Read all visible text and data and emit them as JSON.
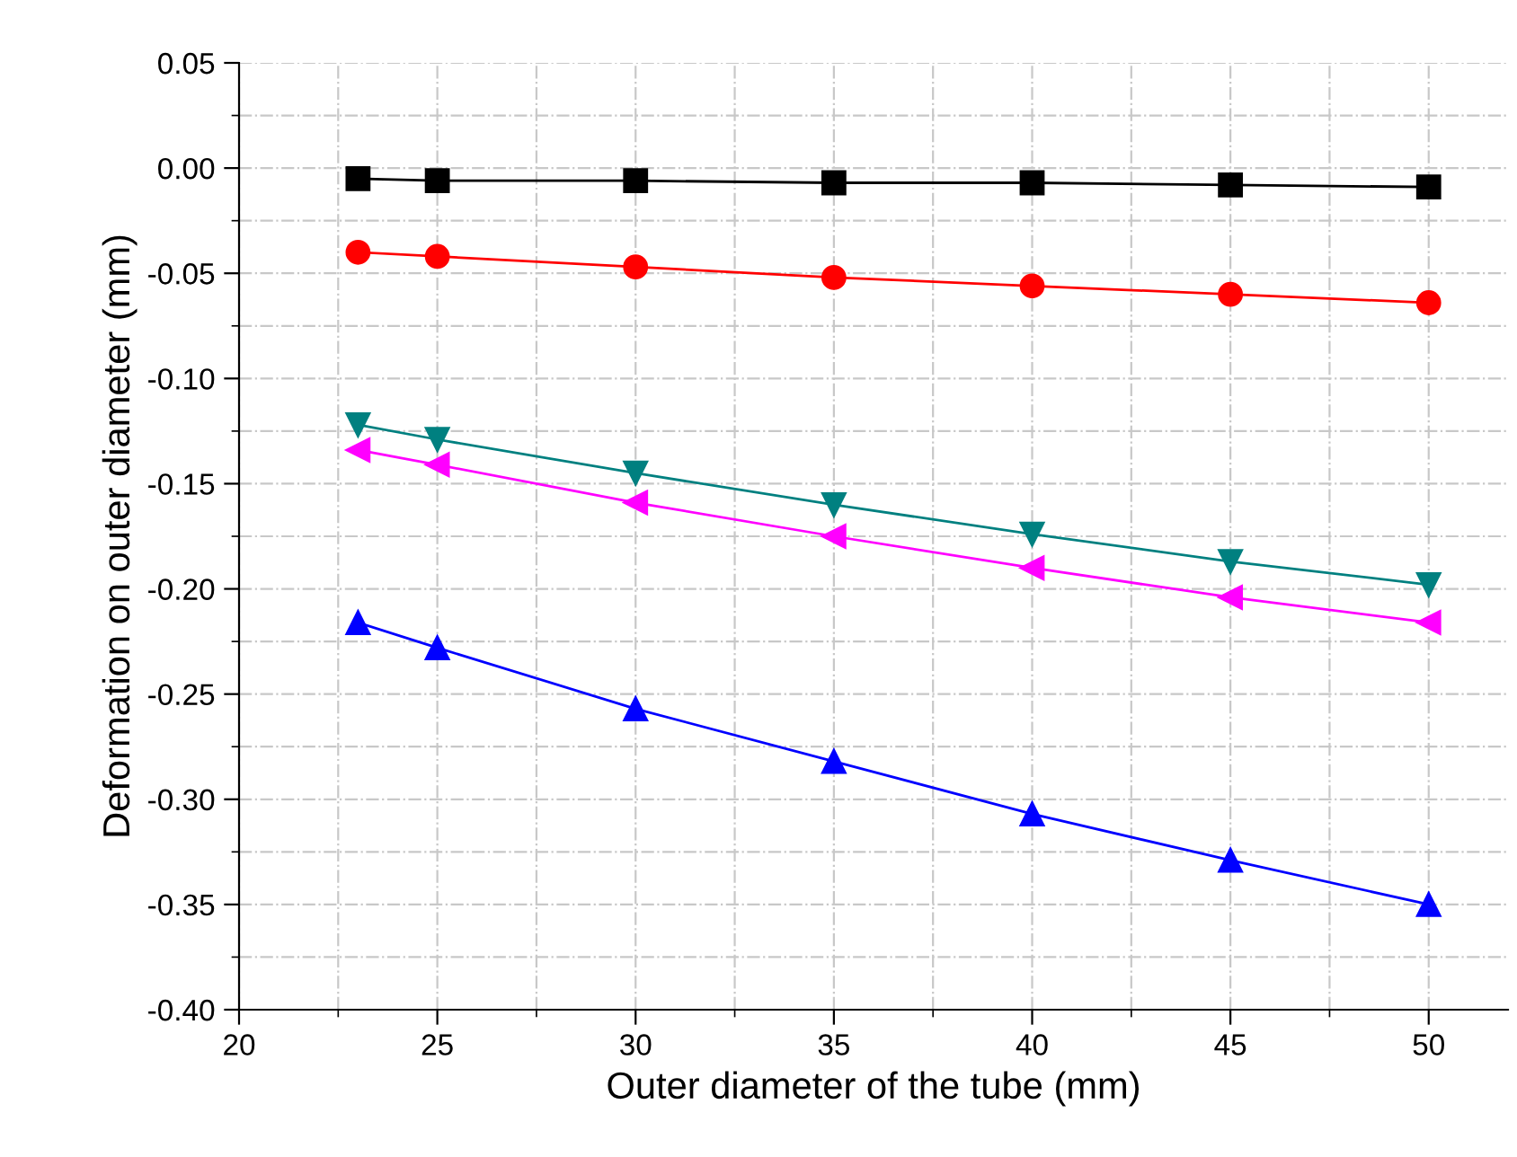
{
  "chart_data": {
    "type": "line",
    "xlabel": "Outer diameter of the tube (mm)",
    "ylabel": "Deformation on outer diameter (mm)",
    "x": [
      23,
      25,
      30,
      35,
      40,
      45,
      50
    ],
    "series": [
      {
        "color": "#000000",
        "marker": "square",
        "values": [
          -0.005,
          -0.006,
          -0.006,
          -0.007,
          -0.007,
          -0.008,
          -0.009
        ]
      },
      {
        "color": "#ff0000",
        "marker": "circle",
        "values": [
          -0.04,
          -0.042,
          -0.047,
          -0.052,
          -0.056,
          -0.06,
          -0.064
        ]
      },
      {
        "color": "#0000ff",
        "marker": "triangle",
        "values": [
          -0.216,
          -0.228,
          -0.257,
          -0.282,
          -0.307,
          -0.329,
          -0.35
        ]
      },
      {
        "color": "#008080",
        "marker": "triangle-down",
        "values": [
          -0.122,
          -0.129,
          -0.145,
          -0.16,
          -0.174,
          -0.187,
          -0.198
        ]
      },
      {
        "color": "#ff00ff",
        "marker": "triangle-left",
        "values": [
          -0.134,
          -0.141,
          -0.159,
          -0.175,
          -0.19,
          -0.204,
          -0.216
        ]
      }
    ],
    "xlim": [
      20,
      52
    ],
    "xticks": [
      20,
      25,
      30,
      35,
      40,
      45,
      50
    ],
    "ylim": [
      -0.4,
      0.05
    ],
    "yticks": [
      {
        "value": -0.4,
        "label": "-0.40"
      },
      {
        "value": -0.35,
        "label": "-0.35"
      },
      {
        "value": -0.3,
        "label": "-0.30"
      },
      {
        "value": -0.25,
        "label": "-0.25"
      },
      {
        "value": -0.2,
        "label": "-0.20"
      },
      {
        "value": -0.15,
        "label": "-0.15"
      },
      {
        "value": -0.1,
        "label": "-0.10"
      },
      {
        "value": -0.05,
        "label": "-0.05"
      },
      {
        "value": 0.0,
        "label": "0.00"
      },
      {
        "value": 0.05,
        "label": "0.05"
      }
    ],
    "grid": true,
    "line_style": "solid"
  }
}
